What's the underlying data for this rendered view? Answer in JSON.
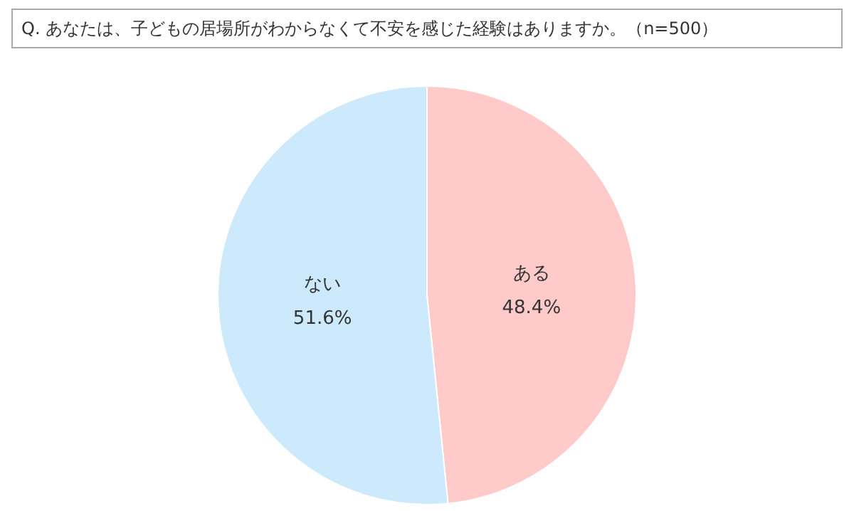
{
  "chart_data": {
    "type": "pie",
    "title": "Q. あなたは、子どもの居場所がわからなくて不安を感じた経験はありますか。（n=500）",
    "categories": [
      "ある",
      "ない"
    ],
    "values": [
      48.4,
      51.6
    ],
    "colors": [
      "#ffcaca",
      "#cdeafc"
    ],
    "value_labels": [
      "48.4%",
      "51.6%"
    ],
    "legend": false
  }
}
